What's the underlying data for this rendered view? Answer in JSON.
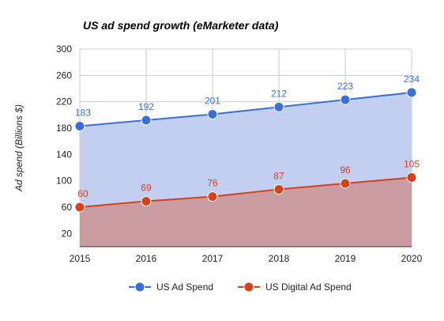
{
  "chart_data": {
    "type": "area",
    "title": "US ad spend growth (eMarketer data)",
    "xlabel": "",
    "ylabel": "Ad spend (Billions $)",
    "x": [
      "2015",
      "2016",
      "2017",
      "2018",
      "2019",
      "2020"
    ],
    "ylim": [
      0,
      300
    ],
    "yticks": [
      20,
      60,
      100,
      140,
      180,
      220,
      260,
      300
    ],
    "grid": true,
    "legend": "bottom",
    "series": [
      {
        "name": "US Ad Spend",
        "values": [
          183,
          192,
          201,
          212,
          223,
          234
        ],
        "color": "#3a6fd8",
        "fill": "#c2cff0"
      },
      {
        "name": "US Digital Ad Spend",
        "values": [
          60,
          69,
          76,
          87,
          96,
          105
        ],
        "color": "#d6401c",
        "fill": "#c99ca2"
      }
    ]
  }
}
